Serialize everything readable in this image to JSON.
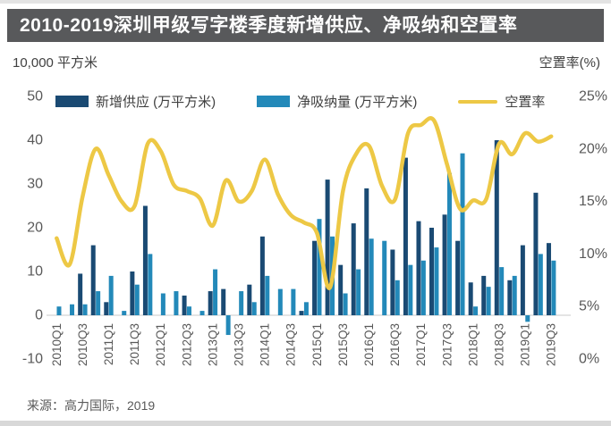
{
  "header": {
    "title": "2010-2019深圳甲级写字楼季度新增供应、净吸纳和空置率"
  },
  "axis_units": {
    "left": "10,000 平方米",
    "right": "空置率(%)"
  },
  "legend": {
    "items": [
      {
        "label": "新增供应 (万平方米)",
        "swatch": "bar",
        "color": "#1A4A73"
      },
      {
        "label": "净吸纳量 (万平方米)",
        "swatch": "bar",
        "color": "#2389B9"
      },
      {
        "label": "空置率",
        "swatch": "line",
        "color": "#EDC845"
      }
    ]
  },
  "source": "来源：高力国际，2019",
  "colors": {
    "title_bar_bg": "#58595B",
    "title_text": "#FFFFFF",
    "supply_bar": "#1A4A73",
    "absorption_bar": "#2389B9",
    "vacancy_line": "#EDC845",
    "axis_text": "#595959",
    "baseline": "#C9C9C9"
  },
  "chart_data": {
    "type": "bar+line",
    "title": "2010-2019深圳甲级写字楼季度新增供应、净吸纳和空置率",
    "categories": [
      "2010Q1",
      "2010Q2",
      "2010Q3",
      "2010Q4",
      "2011Q1",
      "2011Q2",
      "2011Q3",
      "2011Q4",
      "2012Q1",
      "2012Q2",
      "2012Q3",
      "2012Q4",
      "2013Q1",
      "2013Q2",
      "2013Q3",
      "2013Q4",
      "2014Q1",
      "2014Q2",
      "2014Q3",
      "2014Q4",
      "2015Q1",
      "2015Q2",
      "2015Q3",
      "2015Q4",
      "2016Q1",
      "2016Q2",
      "2016Q3",
      "2016Q4",
      "2017Q1",
      "2017Q2",
      "2017Q3",
      "2017Q4",
      "2018Q1",
      "2018Q2",
      "2018Q3",
      "2018Q4",
      "2019Q1",
      "2019Q2",
      "2019Q3"
    ],
    "x_tick_labels": [
      "2010Q1",
      "2010Q3",
      "2011Q1",
      "2011Q3",
      "2012Q1",
      "2012Q3",
      "2013Q1",
      "2013Q3",
      "2014Q1",
      "2014Q3",
      "2015Q1",
      "2015Q3",
      "2016Q1",
      "2016Q3",
      "2017Q1",
      "2017Q3",
      "2018Q1",
      "2018Q3",
      "2019Q1",
      "2019Q3"
    ],
    "series": [
      {
        "name": "新增供应 (万平方米)",
        "type": "bar",
        "axis": "left",
        "color": "#1A4A73",
        "values": [
          0,
          0,
          9.5,
          16,
          3,
          0,
          10,
          25,
          0,
          0,
          4.5,
          0,
          5.5,
          6,
          0,
          7,
          18,
          0,
          0,
          1,
          17,
          31,
          11.5,
          21,
          29,
          0,
          15,
          36,
          21.5,
          20,
          23,
          17,
          7.5,
          9,
          40,
          8,
          16,
          28,
          16.5
        ]
      },
      {
        "name": "净吸纳量 (万平方米)",
        "type": "bar",
        "axis": "left",
        "color": "#2389B9",
        "values": [
          2,
          2.5,
          2.5,
          5.5,
          9,
          1,
          7,
          14,
          5,
          5.5,
          2,
          1,
          10.5,
          -4.5,
          5.5,
          3,
          9,
          6,
          6,
          3,
          22,
          18,
          5,
          10.5,
          17.5,
          17,
          8,
          11.5,
          12.5,
          15.5,
          32.5,
          37,
          2,
          6.5,
          11,
          9,
          -1.5,
          14,
          12.5
        ]
      },
      {
        "name": "空置率",
        "type": "line",
        "axis": "right",
        "color": "#EDC845",
        "values_percent": [
          11.5,
          9,
          15.5,
          20,
          17.5,
          15,
          14.6,
          20.5,
          19.8,
          16.6,
          16,
          15.3,
          12.7,
          17,
          15,
          16,
          19,
          15.7,
          13.7,
          13,
          12,
          6.8,
          16,
          19.5,
          20.3,
          16.5,
          15.2,
          21.5,
          22.3,
          22.7,
          18.5,
          14.3,
          15.1,
          15.2,
          20.5,
          19.5,
          21.5,
          20.7,
          21.2
        ]
      }
    ],
    "left_axis": {
      "label": "10,000 平方米",
      "ticks": [
        50,
        40,
        30,
        20,
        10,
        0,
        -10
      ],
      "range": [
        -10,
        50
      ]
    },
    "right_axis": {
      "label": "空置率(%)",
      "ticks_percent": [
        25,
        20,
        15,
        10,
        5,
        0
      ],
      "range_percent": [
        0,
        25
      ]
    },
    "grid": false,
    "legend_position": "top"
  }
}
